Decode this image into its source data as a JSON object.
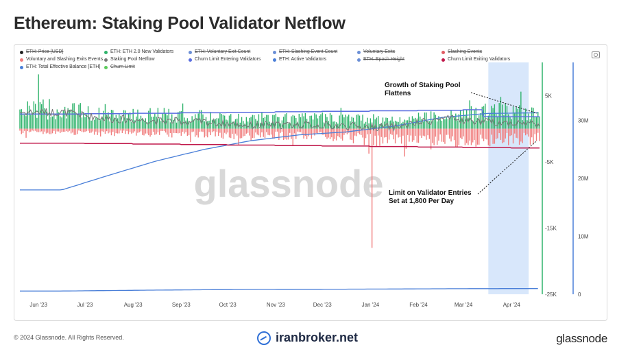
{
  "title": "Ethereum: Staking Pool Validator Netflow",
  "legend": [
    {
      "label": "ETH: Price [USD]",
      "color": "#222222",
      "active": false
    },
    {
      "label": "ETH: ETH 2.0 New Validators",
      "color": "#2fb36b",
      "active": true
    },
    {
      "label": "ETH: Voluntary Exit Count",
      "color": "#6b8fd6",
      "active": false
    },
    {
      "label": "ETH: Slashing Event Count",
      "color": "#6b8fd6",
      "active": false
    },
    {
      "label": "Voluntary Exits",
      "color": "#6b8fd6",
      "active": false
    },
    {
      "label": "Slashing Events",
      "color": "#e05b63",
      "active": false
    },
    {
      "label": "Voluntary and Slashing Exits Events",
      "color": "#f07c7c",
      "active": true
    },
    {
      "label": "Staking Pool Netflow",
      "color": "#7a7a7a",
      "active": true
    },
    {
      "label": "Churn Limit Entering Validators",
      "color": "#5a6ee0",
      "active": true
    },
    {
      "label": "ETH: Active Validators",
      "color": "#4a7fd8",
      "active": true
    },
    {
      "label": "ETH: Epoch Height",
      "color": "#6b8fd6",
      "active": false
    },
    {
      "label": "Churn Limit Exiting Validators",
      "color": "#c0194b",
      "active": true
    },
    {
      "label": "ETH: Total Effective Balance [ETH]",
      "color": "#4a7fd8",
      "active": true
    },
    {
      "label": "Churn Limit",
      "color": "#5ccb5c",
      "active": false
    }
  ],
  "chart_data": {
    "type": "bar",
    "x_ticks": [
      "Jun '23",
      "Jul '23",
      "Aug '23",
      "Sep '23",
      "Oct '23",
      "Nov '23",
      "Dec '23",
      "Jan '24",
      "Feb '24",
      "Mar '24",
      "Apr '24"
    ],
    "y_left": {
      "ticks": [
        "5K",
        "-5K",
        "-15K",
        "-25K"
      ],
      "range": [
        -25000,
        10000
      ]
    },
    "y_right": {
      "ticks": [
        "30M",
        "20M",
        "10M",
        "0"
      ],
      "range": [
        0,
        40000000
      ]
    },
    "highlight_range": [
      "2024-03-17",
      "2024-04-12"
    ],
    "annotations": [
      {
        "text_lines": [
          "Growth of Staking Pool",
          "Flattens"
        ]
      },
      {
        "text_lines": [
          "Limit on Validator Entries",
          "Set at 1,800 Per Day"
        ]
      }
    ],
    "series": [
      {
        "name": "ETH: ETH 2.0 New Validators",
        "kind": "bar",
        "color": "#2fb36b",
        "monthly_typical_max": [
          4500,
          3000,
          3200,
          2800,
          2200,
          2400,
          2500,
          2000,
          3000,
          3800,
          4000
        ]
      },
      {
        "name": "Voluntary and Slashing Exits Events",
        "kind": "bar",
        "color": "#f07c7c",
        "monthly_typical_min": [
          -900,
          -1100,
          -1300,
          -1500,
          -1800,
          -1700,
          -2200,
          -3000,
          -3200,
          -2800,
          -2400
        ],
        "notable_min": {
          "date": "2024-01-02",
          "value": -18000
        }
      },
      {
        "name": "Staking Pool Netflow",
        "kind": "line",
        "color": "#7a7a7a",
        "monthly_avg": [
          2500,
          1500,
          1200,
          1000,
          500,
          600,
          400,
          200,
          1500,
          1000,
          800
        ]
      },
      {
        "name": "Churn Limit Entering Validators",
        "kind": "line",
        "color": "#5a6ee0",
        "monthly": [
          2200,
          2250,
          2325,
          2400,
          2475,
          2550,
          2625,
          2700,
          2775,
          2850,
          1800
        ]
      },
      {
        "name": "Churn Limit Exiting Validators",
        "kind": "line",
        "color": "#c0194b",
        "monthly": [
          -2200,
          -2250,
          -2325,
          -2400,
          -2475,
          -2550,
          -2625,
          -2700,
          -2775,
          -2850,
          -2925
        ]
      },
      {
        "name": "ETH: Active Validators",
        "kind": "line",
        "axis": "right",
        "color": "#4a7fd8",
        "monthly": [
          18000000,
          20500000,
          23000000,
          25000000,
          26500000,
          27500000,
          28000000,
          29000000,
          30500000,
          31200000,
          31300000
        ]
      },
      {
        "name": "ETH: Total Effective Balance [ETH]",
        "kind": "line",
        "axis": "right",
        "color": "#4a7fd8",
        "monthly": [
          560000,
          640000,
          720000,
          780000,
          830000,
          860000,
          880000,
          910000,
          950000,
          975000,
          980000
        ]
      }
    ]
  },
  "footer": {
    "copyright": "© 2024 Glassnode. All Rights Reserved.",
    "brand_center": "iranbroker.net",
    "brand_right": "glassnode",
    "watermark": "glassnode"
  }
}
